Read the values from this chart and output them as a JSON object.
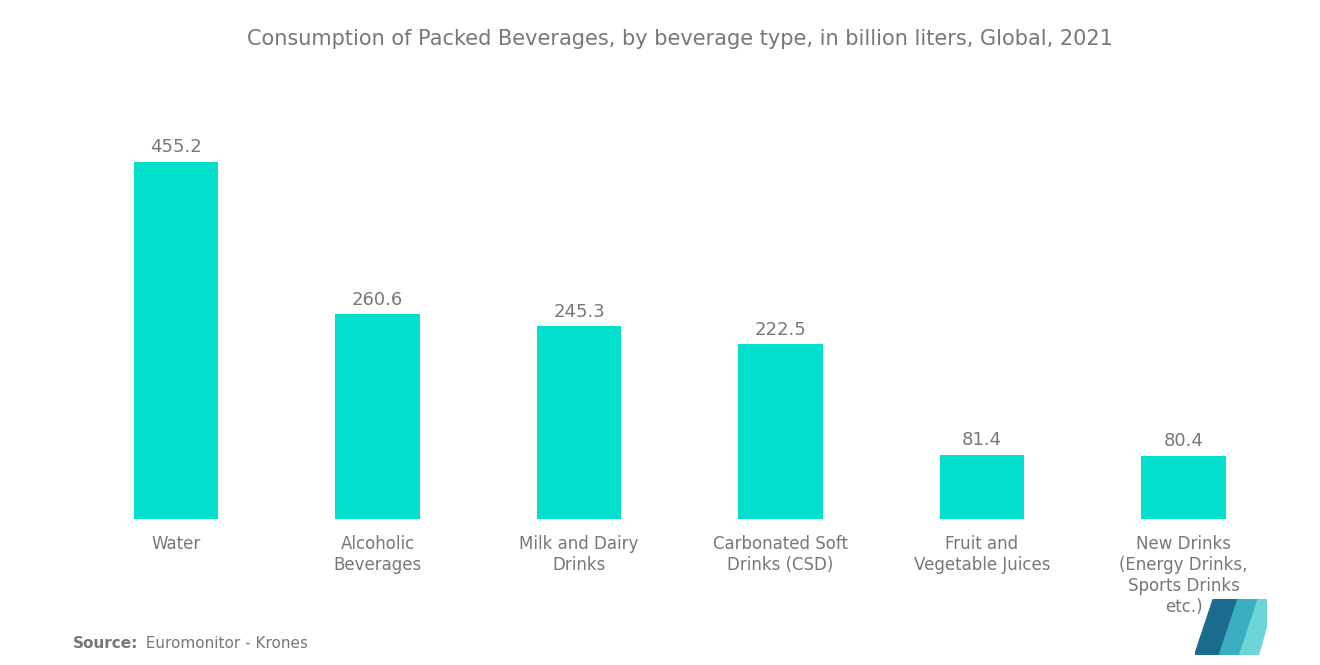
{
  "title": "Consumption of Packed Beverages, by beverage type, in billion liters, Global, 2021",
  "categories": [
    "Water",
    "Alcoholic\nBeverages",
    "Milk and Dairy\nDrinks",
    "Carbonated Soft\nDrinks (CSD)",
    "Fruit and\nVegetable Juices",
    "New Drinks\n(Energy Drinks,\nSports Drinks\netc.)"
  ],
  "values": [
    455.2,
    260.6,
    245.3,
    222.5,
    81.4,
    80.4
  ],
  "bar_color": "#00E0CC",
  "title_color": "#777777",
  "label_color": "#777777",
  "value_color": "#777777",
  "source_bold": "Source:",
  "source_normal": "  Euromonitor - Krones",
  "background_color": "#ffffff",
  "title_fontsize": 15,
  "label_fontsize": 12,
  "value_fontsize": 13,
  "source_fontsize": 11,
  "ylim": [
    0,
    560
  ],
  "bar_width": 0.42,
  "logo_colors": [
    "#1A6B8A",
    "#00BCD4",
    "#5ECFCF"
  ],
  "logo_alpha": [
    0.9,
    0.7,
    0.85
  ]
}
